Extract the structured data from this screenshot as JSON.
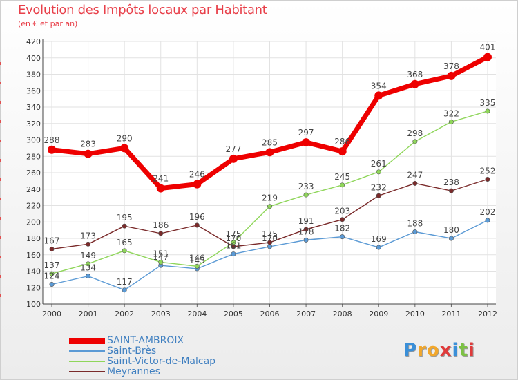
{
  "chart_data": {
    "type": "line",
    "title": "Evolution des Impôts locaux par Habitant",
    "subtitle": "(en € et par an)",
    "categories": [
      "2000",
      "2001",
      "2002",
      "2003",
      "2004",
      "2005",
      "2006",
      "2007",
      "2008",
      "2009",
      "2010",
      "2011",
      "2012"
    ],
    "ylim": [
      100,
      420
    ],
    "yticks": [
      100,
      120,
      140,
      160,
      180,
      200,
      220,
      240,
      260,
      280,
      300,
      320,
      340,
      360,
      380,
      400,
      420
    ],
    "grid": true,
    "legend_position": "bottom-left",
    "series": [
      {
        "name": "SAINT-AMBROIX",
        "color": "#ee0000",
        "values": [
          288,
          283,
          290,
          241,
          246,
          277,
          285,
          297,
          286,
          354,
          368,
          378,
          401
        ]
      },
      {
        "name": "Saint-Brès",
        "color": "#5b9ad5",
        "values": [
          124,
          134,
          117,
          147,
          143,
          161,
          170,
          178,
          182,
          169,
          188,
          180,
          202
        ]
      },
      {
        "name": "Saint-Victor-de-Malcap",
        "color": "#8fd65a",
        "values": [
          137,
          149,
          165,
          151,
          146,
          175,
          219,
          233,
          245,
          261,
          298,
          322,
          335
        ]
      },
      {
        "name": "Meyrannes",
        "color": "#7a2a2a",
        "values": [
          167,
          173,
          195,
          186,
          196,
          170,
          175,
          191,
          203,
          232,
          247,
          238,
          252
        ]
      }
    ],
    "data_labels": {
      "SAINT-AMBROIX": [
        "288",
        "283",
        "290",
        "241",
        "246",
        "277",
        "285",
        "297",
        "286",
        "354",
        "368",
        "378",
        "401"
      ],
      "Saint-Brès": [
        "124",
        "134",
        "117",
        "147",
        "143",
        "161",
        "170",
        "178",
        "182",
        "169",
        "188",
        "180",
        "202"
      ],
      "Saint-Victor-de-Malcap": [
        "137",
        "149",
        "165",
        "151",
        "146",
        "175",
        "219",
        "233",
        "245",
        "261",
        "298",
        "322",
        "335"
      ],
      "Meyrannes": [
        "167",
        "173",
        "195",
        "186",
        "196",
        "170",
        "175",
        "191",
        "203",
        "232",
        "247",
        "238",
        "252"
      ]
    }
  },
  "logo": {
    "letters": [
      "P",
      "r",
      "o",
      "x",
      "i",
      "t",
      "i"
    ],
    "colors": [
      "#3a8fd8",
      "#f2a72b",
      "#f2a72b",
      "#e03a3a",
      "#3a8fd8",
      "#7cc242",
      "#e03a3a"
    ]
  }
}
